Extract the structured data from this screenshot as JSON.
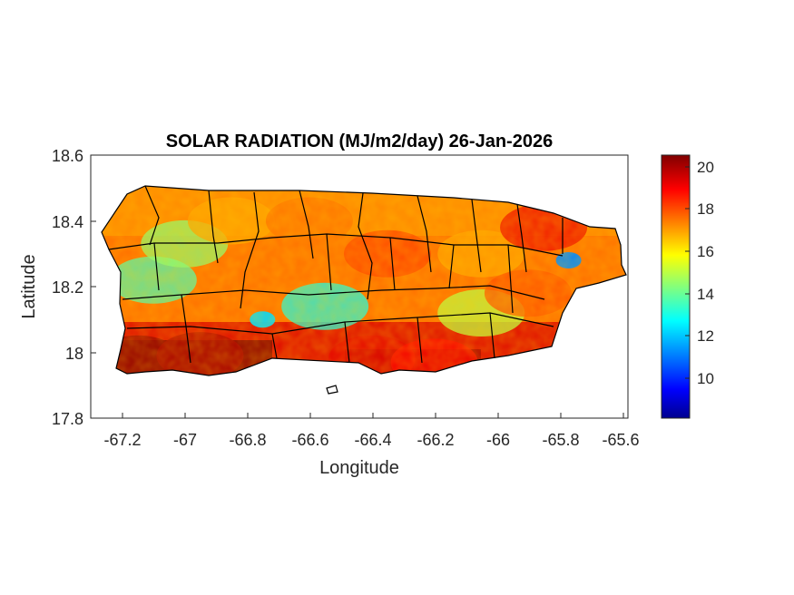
{
  "title": "SOLAR RADIATION (MJ/m2/day) 26-Jan-2026",
  "xlabel": "Longitude",
  "ylabel": "Latitude",
  "x_ticks": [
    "-67.2",
    "-67",
    "-66.8",
    "-66.6",
    "-66.4",
    "-66.2",
    "-66",
    "-65.8",
    "-65.6"
  ],
  "y_ticks": [
    "18.6",
    "18.4",
    "18.2",
    "18",
    "17.8"
  ],
  "colorbar_ticks": [
    "20",
    "18",
    "16",
    "14",
    "12",
    "10"
  ],
  "colormap": [
    "#00008f",
    "#0000ff",
    "#00ffff",
    "#ffff00",
    "#ff0000",
    "#800000"
  ],
  "border_color": "#000000",
  "chart_data": {
    "type": "heatmap",
    "title": "SOLAR RADIATION (MJ/m2/day) 26-Jan-2026",
    "xlabel": "Longitude",
    "ylabel": "Latitude",
    "xlim": [
      -67.3,
      -65.58
    ],
    "ylim": [
      17.8,
      18.6
    ],
    "xticks": [
      -67.2,
      -67,
      -66.8,
      -66.6,
      -66.4,
      -66.2,
      -66,
      -65.8,
      -65.6
    ],
    "yticks": [
      17.8,
      18,
      18.2,
      18.4,
      18.6
    ],
    "colorbar": {
      "min": 8.1,
      "max": 20.6,
      "ticks": [
        10,
        12,
        14,
        16,
        18,
        20
      ]
    },
    "regions": [
      {
        "name": "",
        "lon": -67.15,
        "lat": 17.98,
        "value": 20.3
      },
      {
        "name": "",
        "lon": -66.95,
        "lat": 17.99,
        "value": 20.0
      },
      {
        "name": "",
        "lon": -66.4,
        "lat": 17.98,
        "value": 19.3
      },
      {
        "name": "",
        "lon": -66.2,
        "lat": 17.97,
        "value": 19.0
      },
      {
        "name": "",
        "lon": -67.1,
        "lat": 18.22,
        "value": 13.6
      },
      {
        "name": "",
        "lon": -67.0,
        "lat": 18.33,
        "value": 14.4
      },
      {
        "name": "",
        "lon": -66.75,
        "lat": 18.1,
        "value": 12.2
      },
      {
        "name": "",
        "lon": -66.55,
        "lat": 18.14,
        "value": 13.0
      },
      {
        "name": "",
        "lon": -66.85,
        "lat": 18.4,
        "value": 17.0
      },
      {
        "name": "",
        "lon": -66.6,
        "lat": 18.4,
        "value": 17.6
      },
      {
        "name": "",
        "lon": -66.35,
        "lat": 18.3,
        "value": 18.2
      },
      {
        "name": "",
        "lon": -66.05,
        "lat": 18.3,
        "value": 17.0
      },
      {
        "name": "",
        "lon": -66.05,
        "lat": 18.12,
        "value": 15.0
      },
      {
        "name": "",
        "lon": -65.85,
        "lat": 18.38,
        "value": 19.2
      },
      {
        "name": "",
        "lon": -65.77,
        "lat": 18.28,
        "value": 11.2
      },
      {
        "name": "",
        "lon": -65.9,
        "lat": 18.18,
        "value": 18.0
      }
    ]
  }
}
